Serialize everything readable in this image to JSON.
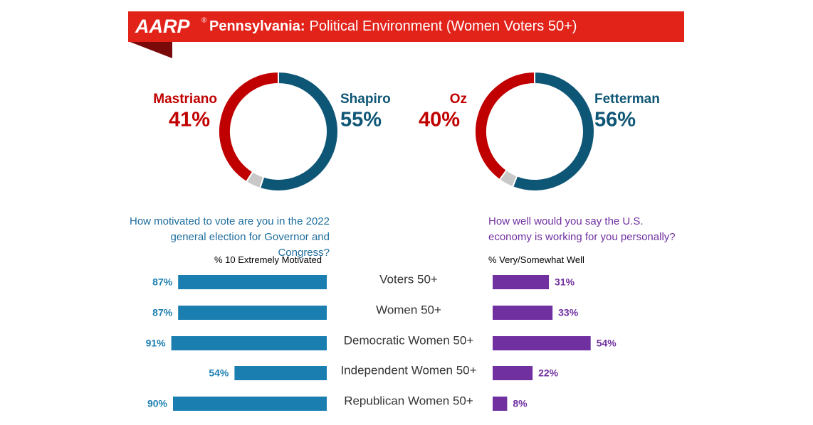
{
  "header": {
    "brand": "AARP",
    "brand_mark": "®",
    "state": "Pennsylvania:",
    "title": "Political Environment (Women Voters 50+)"
  },
  "chart_data": [
    {
      "type": "pie",
      "categories": [
        "Mastriano",
        "Shapiro",
        null
      ],
      "values": [
        41,
        55,
        4
      ],
      "value_labels": [
        "41%",
        "55%",
        null
      ],
      "colors": [
        "#c00000",
        "#0e5675",
        "#c8c8c8"
      ]
    },
    {
      "type": "pie",
      "categories": [
        "Oz",
        "Fetterman",
        null
      ],
      "values": [
        40,
        56,
        4
      ],
      "value_labels": [
        "40%",
        "56%",
        null
      ],
      "colors": [
        "#c00000",
        "#0e5675",
        "#c8c8c8"
      ]
    },
    {
      "type": "bar",
      "orientation": "left",
      "title": "How motivated to vote are you in the 2022 general election for Governor and Congress?",
      "subtitle": "% 10 Extremely Motivated",
      "categories": [
        "Voters 50+",
        "Women 50+",
        "Democratic Women 50+",
        "Independent Women 50+",
        "Republican Women 50+"
      ],
      "values": [
        87,
        87,
        91,
        54,
        90
      ],
      "value_labels": [
        "87%",
        "87%",
        "91%",
        "54%",
        "90%"
      ],
      "color": "#1a7fb0",
      "title_color": "#1f6d9c"
    },
    {
      "type": "bar",
      "orientation": "right",
      "title": "How well would you say the U.S. economy is working for you personally?",
      "subtitle": "% Very/Somewhat Well",
      "values": [
        31,
        33,
        54,
        22,
        8
      ],
      "value_labels": [
        "31%",
        "33%",
        "54%",
        "22%",
        "8%"
      ],
      "color": "#7030a0",
      "title_color": "#7030a0"
    }
  ]
}
